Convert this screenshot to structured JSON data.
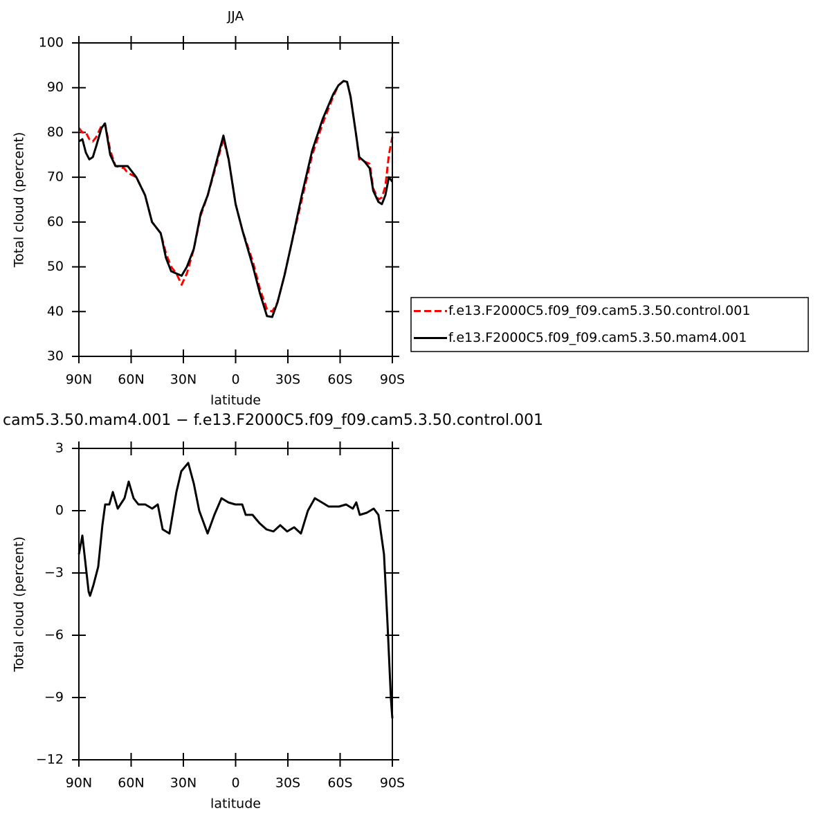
{
  "chart_data": [
    {
      "type": "line",
      "title": "JJA",
      "xlabel": "latitude",
      "ylabel": "Total cloud (percent)",
      "x": [
        90,
        88,
        86,
        84,
        82,
        80,
        77,
        75,
        72,
        69,
        64,
        62,
        57,
        52,
        48,
        43,
        40,
        37,
        34,
        31,
        28,
        24,
        20,
        16,
        12,
        7,
        4,
        0,
        -4,
        -10,
        -14,
        -18,
        -21,
        -24,
        -28,
        -32,
        -38,
        -44,
        -50,
        -56,
        -59,
        -62,
        -64,
        -66,
        -69,
        -71,
        -74,
        -77,
        -79,
        -82,
        -84,
        -86,
        -88,
        -90
      ],
      "series": [
        {
          "name": "f.e13.F2000C5.f09_f09.cam5.3.50.control.001",
          "color": "#ff0000",
          "dash": true,
          "values": [
            81,
            80,
            80,
            78.5,
            78,
            79,
            81.5,
            82,
            76,
            72.5,
            72,
            71,
            70,
            66,
            60,
            57.5,
            53,
            50,
            48.5,
            46,
            48.5,
            54,
            61.5,
            66,
            71.5,
            78.5,
            74,
            64,
            58,
            51,
            45,
            40.5,
            40,
            42,
            48,
            55,
            65,
            75,
            82,
            88,
            90.5,
            91.5,
            91.3,
            88,
            80,
            74,
            73.5,
            73,
            67.5,
            65,
            65.5,
            68,
            75,
            79
          ]
        },
        {
          "name": "f.e13.F2000C5.f09_f09.cam5.3.50.mam4.001",
          "color": "#000000",
          "dash": false,
          "values": [
            78,
            78.5,
            75.5,
            74,
            74.5,
            77,
            81,
            82,
            75,
            72.5,
            72.5,
            72.5,
            70,
            66,
            60,
            57.5,
            52,
            49,
            48.5,
            48,
            50,
            54,
            62,
            66,
            72,
            79.3,
            74,
            64,
            58,
            50,
            44,
            39,
            38.8,
            42,
            48,
            55,
            66,
            76,
            83,
            88.5,
            90.5,
            91.5,
            91.3,
            88,
            80,
            74.5,
            73.5,
            72,
            67,
            64.5,
            64,
            66,
            70,
            69
          ]
        }
      ],
      "xlim": [
        90,
        -90
      ],
      "xticks": [
        {
          "value": 90,
          "label": "90N"
        },
        {
          "value": 60,
          "label": "60N"
        },
        {
          "value": 30,
          "label": "30N"
        },
        0,
        {
          "value": -30,
          "label": "30S"
        },
        {
          "value": -60,
          "label": "60S"
        },
        {
          "value": -90,
          "label": "90S"
        }
      ],
      "ylim": [
        30,
        100
      ],
      "yticks": [
        30,
        40,
        50,
        60,
        70,
        80,
        90,
        100
      ],
      "legend": "right"
    },
    {
      "type": "line",
      "title": "cam5.3.50.mam4.001 − f.e13.F2000C5.f09_f09.cam5.3.50.control.001",
      "xlabel": "latitude",
      "ylabel": "Total cloud (percent)",
      "x": [
        90,
        88,
        84.4,
        83.6,
        81.7,
        78.9,
        76.5,
        74.9,
        72.5,
        70.5,
        67.7,
        63.8,
        61.4,
        58.6,
        55.8,
        51.9,
        47.9,
        44.7,
        41.9,
        38,
        34,
        31.2,
        27.2,
        24,
        20.9,
        16.1,
        12.2,
        8.1,
        4.2,
        0.2,
        -3.8,
        -5.8,
        -9.7,
        -13.7,
        -17.7,
        -21.7,
        -25.6,
        -29.6,
        -33.6,
        -37.5,
        -41.5,
        -45.5,
        -49.5,
        -53.4,
        -59.4,
        -63.4,
        -67.3,
        -69.3,
        -71.3,
        -75.3,
        -79.3,
        -82,
        -85.2,
        -87.2,
        -89.2,
        -90
      ],
      "series": [
        {
          "color": "#000000",
          "values": [
            -2.1,
            -1.2,
            -3.9,
            -4.1,
            -3.6,
            -2.7,
            -0.7,
            0.3,
            0.3,
            0.9,
            0.1,
            0.6,
            1.4,
            0.6,
            0.3,
            0.3,
            0.1,
            0.3,
            -0.9,
            -1.1,
            0.9,
            1.9,
            2.3,
            1.3,
            0,
            -1.1,
            -0.2,
            0.6,
            0.4,
            0.3,
            0.3,
            -0.2,
            -0.2,
            -0.6,
            -0.9,
            -1,
            -0.7,
            -1,
            -0.8,
            -1.1,
            0,
            0.6,
            0.4,
            0.2,
            0.2,
            0.3,
            0.1,
            0.4,
            -0.2,
            -0.1,
            0.1,
            -0.2,
            -2.1,
            -5.4,
            -9.1,
            -10
          ]
        }
      ],
      "xlim": [
        90,
        -90
      ],
      "xticks": [
        {
          "value": 90,
          "label": "90N"
        },
        {
          "value": 60,
          "label": "60N"
        },
        {
          "value": 30,
          "label": "30N"
        },
        0,
        {
          "value": -30,
          "label": "30S"
        },
        {
          "value": -60,
          "label": "60S"
        },
        {
          "value": -90,
          "label": "90S"
        }
      ],
      "ylim": [
        -12,
        3
      ],
      "yticks": [
        {
          "value": -12,
          "label": "−12"
        },
        {
          "value": -9,
          "label": "−9"
        },
        {
          "value": -6,
          "label": "−6"
        },
        {
          "value": -3,
          "label": "−3"
        },
        0,
        3
      ]
    }
  ]
}
